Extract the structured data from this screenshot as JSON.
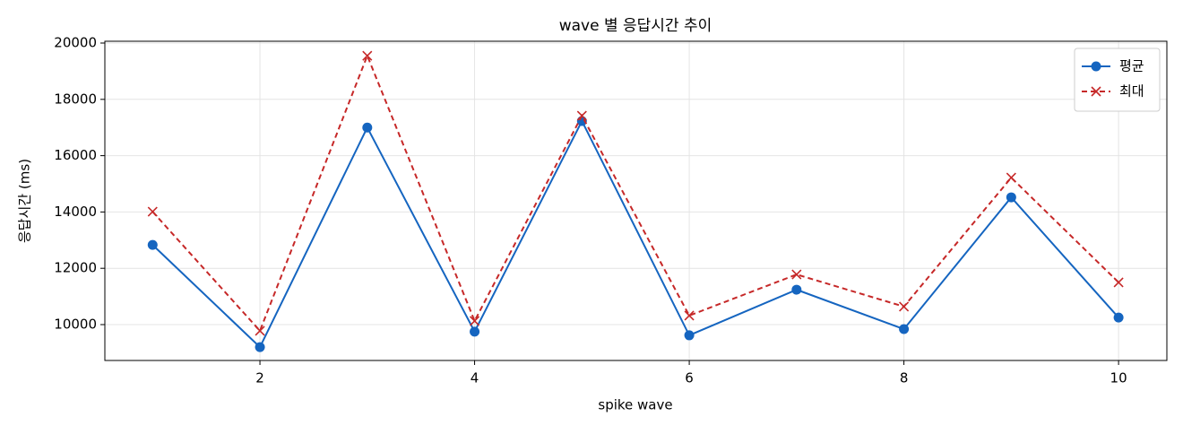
{
  "chart_data": {
    "type": "line",
    "title": "wave 별 응답시간 추이",
    "xlabel": "spike wave",
    "ylabel": "응답시간 (ms)",
    "x": [
      1,
      2,
      3,
      4,
      5,
      6,
      7,
      8,
      9,
      10
    ],
    "series": [
      {
        "name": "평균",
        "color": "#1565c0",
        "marker": "circle",
        "dashed": false,
        "values": [
          12830,
          9200,
          17000,
          9750,
          17230,
          9620,
          11240,
          9840,
          14520,
          10250
        ]
      },
      {
        "name": "최대",
        "color": "#c62828",
        "marker": "cross",
        "dashed": true,
        "values": [
          14010,
          9780,
          19550,
          10130,
          17420,
          10320,
          11780,
          10640,
          15220,
          11500
        ]
      }
    ],
    "xlim": [
      0.555,
      10.45
    ],
    "xticks": [
      2,
      4,
      6,
      8,
      10
    ],
    "ylim": [
      8726,
      20064
    ],
    "yticks": [
      10000,
      12000,
      14000,
      16000,
      18000,
      20000
    ],
    "grid": true,
    "legend": "upper right"
  }
}
